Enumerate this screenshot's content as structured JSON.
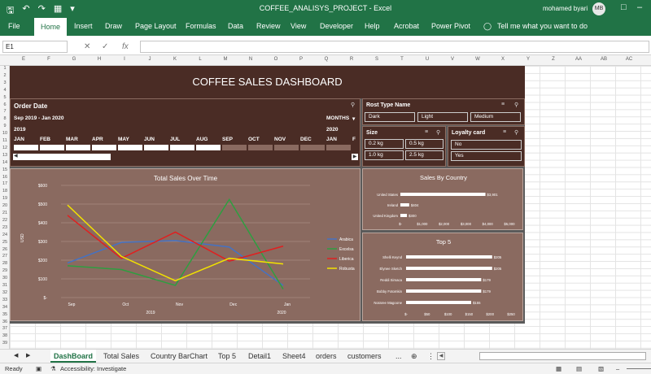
{
  "title_bar": {
    "doc_title": "COFFEE_ANALISYS_PROJECT  -  Excel",
    "user": "mohamed byari",
    "initials": "MB"
  },
  "ribbon_tabs": [
    "File",
    "Home",
    "Insert",
    "Draw",
    "Page Layout",
    "Formulas",
    "Data",
    "Review",
    "View",
    "Developer",
    "Help",
    "Acrobat",
    "Power Pivot",
    "Tell me what you want to do"
  ],
  "formula_bar": {
    "name_box": "E1",
    "fx": "fx"
  },
  "columns": [
    "E",
    "F",
    "G",
    "H",
    "I",
    "J",
    "K",
    "L",
    "M",
    "N",
    "O",
    "P",
    "Q",
    "R",
    "S",
    "T",
    "U",
    "V",
    "W",
    "X",
    "Y",
    "Z",
    "AA",
    "AB",
    "AC"
  ],
  "rows": [
    "1",
    "2",
    "3",
    "4",
    "5",
    "6",
    "7",
    "8",
    "9",
    "10",
    "11",
    "12",
    "13",
    "14",
    "15",
    "16",
    "17",
    "18",
    "19",
    "20",
    "21",
    "22",
    "23",
    "24",
    "25",
    "26",
    "27",
    "28",
    "29",
    "30",
    "31",
    "32",
    "33",
    "34",
    "35",
    "36",
    "37",
    "38",
    "39"
  ],
  "dashboard": {
    "title": "COFFEE SALES DASHBOARD",
    "order_date": {
      "header": "Order Date",
      "range": "Sep 2019 - Jan 2020",
      "period": "MONTHS",
      "year1": "2019",
      "year2": "2020",
      "months": [
        "JAN",
        "FEB",
        "MAR",
        "APR",
        "MAY",
        "JUN",
        "JUL",
        "AUG",
        "SEP",
        "OCT",
        "NOV",
        "DEC",
        "JAN",
        "F"
      ]
    },
    "roast": {
      "header": "Rost Type Name",
      "items": [
        "Dark",
        "Light",
        "Medium"
      ]
    },
    "size": {
      "header": "Size",
      "items": [
        "0.2 kg",
        "0.5 kg",
        "1.0 kg",
        "2.5 kg"
      ]
    },
    "loyalty": {
      "header": "Loyalty card",
      "items": [
        "No",
        "Yes"
      ]
    }
  },
  "colors": {
    "brown": "#4a2c25",
    "panel": "#8a6a60",
    "arabica": "#4472c4",
    "excelsa": "#2e9e40",
    "liberica": "#e02020",
    "robusta": "#f2e200"
  },
  "chart_data": [
    {
      "type": "line",
      "title": "Total Sales Over Time",
      "ylabel": "USD",
      "x": [
        "Sep",
        "Oct",
        "Nov",
        "Dec",
        "Jan"
      ],
      "x_years": [
        "2019",
        "2020"
      ],
      "yticks": [
        "$-",
        "$100",
        "$200",
        "$300",
        "$400",
        "$500",
        "$600"
      ],
      "ylim": [
        0,
        600
      ],
      "series": [
        {
          "name": "Arabica",
          "values": [
            185,
            295,
            305,
            270,
            65
          ]
        },
        {
          "name": "Excelsa",
          "values": [
            170,
            150,
            65,
            525,
            45
          ]
        },
        {
          "name": "Liberica",
          "values": [
            440,
            210,
            350,
            195,
            275
          ]
        },
        {
          "name": "Robusta",
          "values": [
            495,
            220,
            90,
            210,
            180
          ]
        }
      ]
    },
    {
      "type": "bar",
      "title": "Sales By Country",
      "categories": [
        "United States",
        "Ireland",
        "United Kingdom"
      ],
      "values": [
        3901,
        404,
        300
      ],
      "labels": [
        "$3,901",
        "$404",
        "$300"
      ],
      "xticks": [
        "$-",
        "$1,000",
        "$2,000",
        "$3,000",
        "$4,000",
        "$5,000"
      ],
      "xlim": [
        0,
        5000
      ]
    },
    {
      "type": "bar",
      "title": "Top 5",
      "categories": [
        "Shelli Keynd",
        "Elynee Sketch",
        "Reddi Simaca",
        "Bobby Fotomkin",
        "Noraree Magoone"
      ],
      "values": [
        205,
        205,
        179,
        179,
        155
      ],
      "labels": [
        "$205",
        "$205",
        "$179",
        "$179",
        "$155"
      ],
      "xticks": [
        "$-",
        "$50",
        "$100",
        "$150",
        "$200",
        "$250"
      ],
      "xlim": [
        0,
        250
      ]
    }
  ],
  "sheet_tabs": [
    "DashBoard",
    "Total Sales",
    "Country BarChart",
    "Top 5",
    "Detail1",
    "Sheet4",
    "orders",
    "customers",
    "..."
  ],
  "status": {
    "ready": "Ready",
    "accessibility": "Accessibility: Investigate"
  }
}
